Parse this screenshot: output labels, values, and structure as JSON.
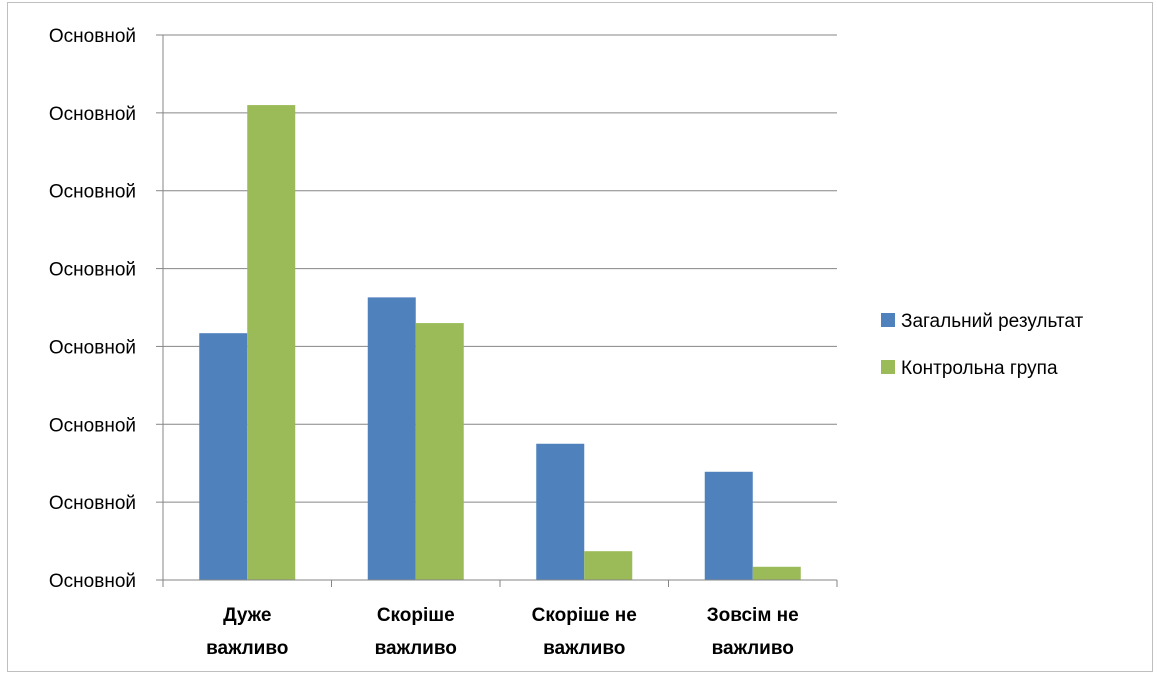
{
  "chart_data": {
    "type": "bar",
    "categories": [
      [
        "Дуже",
        "важливо"
      ],
      [
        "Скоріше",
        "важливо"
      ],
      [
        "Скоріше не",
        "важливо"
      ],
      [
        "Зовсім не",
        "важливо"
      ]
    ],
    "y_tick_labels": [
      "Основной",
      "Основной",
      "Основной",
      "Основной",
      "Основной",
      "Основной",
      "Основной",
      "Основной"
    ],
    "ylim": [
      0,
      7
    ],
    "series": [
      {
        "name": "Загальний результат",
        "color": "#4F81BD",
        "values": [
          3.17,
          3.63,
          1.75,
          1.39
        ]
      },
      {
        "name": "Контрольна група",
        "color": "#9BBB59",
        "values": [
          6.1,
          3.3,
          0.37,
          0.17
        ]
      }
    ],
    "grid": true,
    "legend_position": "right"
  }
}
